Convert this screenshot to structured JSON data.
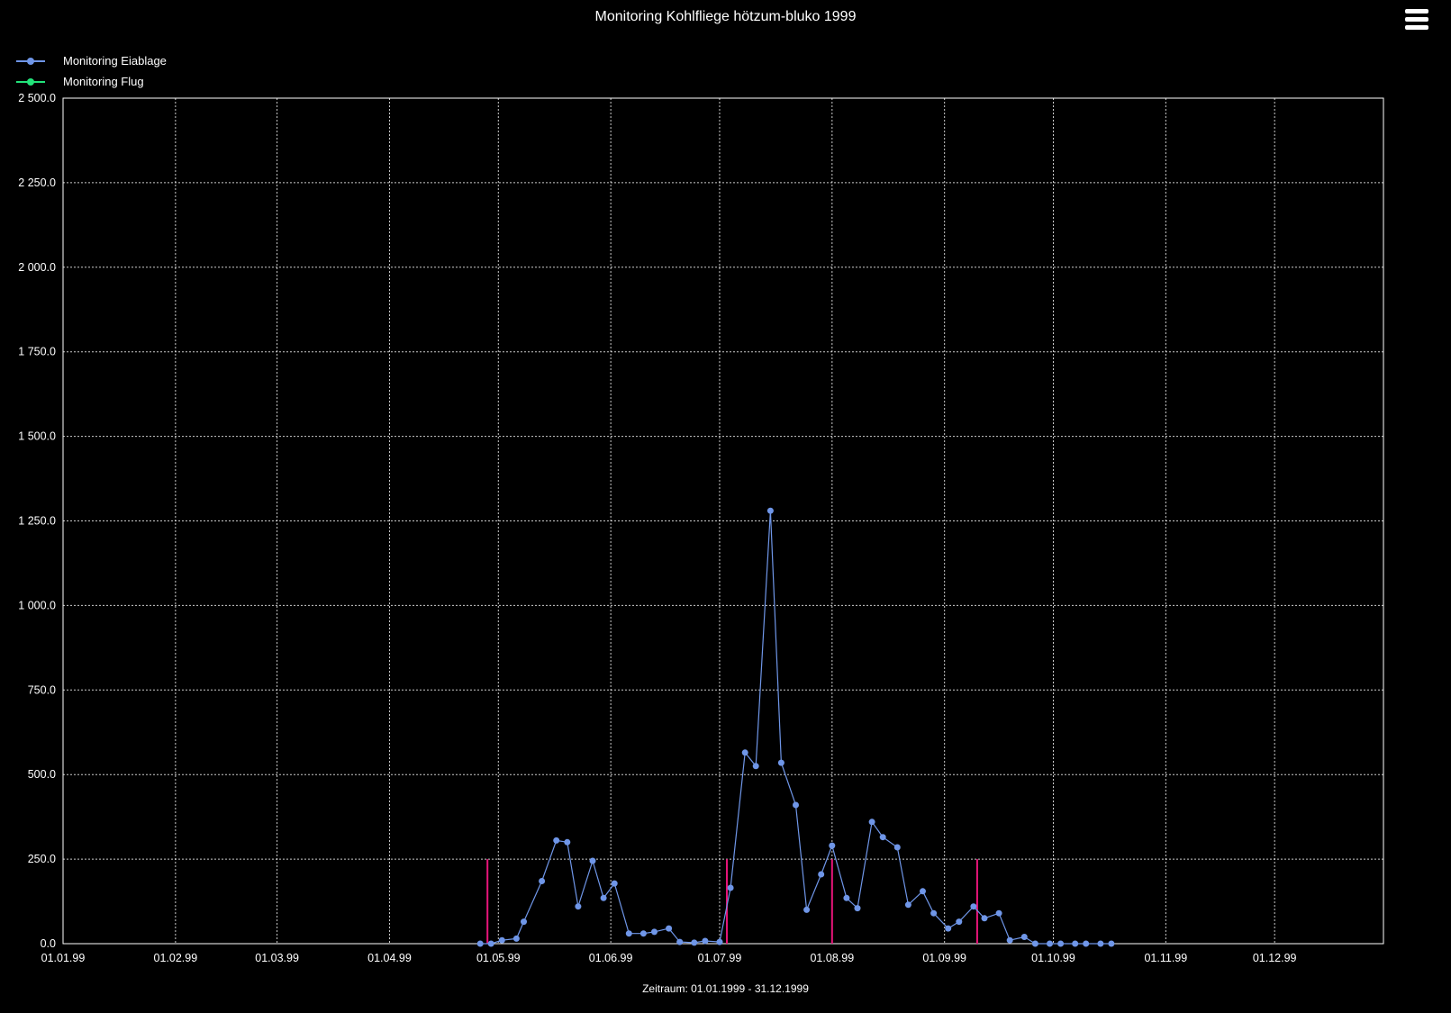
{
  "header": {
    "title": "Monitoring Kohlfliege hötzum-bluko 1999",
    "menu_icon": "hamburger-icon"
  },
  "chart_data": {
    "type": "line",
    "title": "Monitoring Kohlfliege hötzum-bluko 1999",
    "xlabel": "Zeitraum: 01.01.1999 - 31.12.1999",
    "ylabel": "",
    "xlim": [
      "1999-01-01",
      "1999-12-31"
    ],
    "ylim": [
      0,
      2500
    ],
    "grid": true,
    "legend_position": "top-left",
    "x_ticks": [
      "01.01.99",
      "01.02.99",
      "01.03.99",
      "01.04.99",
      "01.05.99",
      "01.06.99",
      "01.07.99",
      "01.08.99",
      "01.09.99",
      "01.10.99",
      "01.11.99",
      "01.12.99"
    ],
    "y_ticks": [
      "0.0",
      "250.0",
      "500.0",
      "750.0",
      "1 000.0",
      "1 250.0",
      "1 500.0",
      "1 750.0",
      "2 000.0",
      "2 250.0",
      "2 500.0"
    ],
    "y_tick_values": [
      0,
      250,
      500,
      750,
      1000,
      1250,
      1500,
      1750,
      2000,
      2250,
      2500
    ],
    "series": [
      {
        "name": "Monitoring Eiablage",
        "color": "#6f96e8",
        "points": [
          [
            "1999-04-26",
            0
          ],
          [
            "1999-04-29",
            0
          ],
          [
            "1999-05-02",
            10
          ],
          [
            "1999-05-06",
            15
          ],
          [
            "1999-05-08",
            65
          ],
          [
            "1999-05-13",
            185
          ],
          [
            "1999-05-17",
            305
          ],
          [
            "1999-05-20",
            300
          ],
          [
            "1999-05-23",
            110
          ],
          [
            "1999-05-27",
            245
          ],
          [
            "1999-05-30",
            135
          ],
          [
            "1999-06-02",
            178
          ],
          [
            "1999-06-06",
            30
          ],
          [
            "1999-06-10",
            30
          ],
          [
            "1999-06-13",
            35
          ],
          [
            "1999-06-17",
            45
          ],
          [
            "1999-06-20",
            5
          ],
          [
            "1999-06-24",
            3
          ],
          [
            "1999-06-27",
            8
          ],
          [
            "1999-07-01",
            5
          ],
          [
            "1999-07-04",
            165
          ],
          [
            "1999-07-08",
            565
          ],
          [
            "1999-07-11",
            525
          ],
          [
            "1999-07-15",
            1280
          ],
          [
            "1999-07-18",
            535
          ],
          [
            "1999-07-22",
            410
          ],
          [
            "1999-07-25",
            100
          ],
          [
            "1999-07-29",
            205
          ],
          [
            "1999-08-01",
            290
          ],
          [
            "1999-08-05",
            135
          ],
          [
            "1999-08-08",
            105
          ],
          [
            "1999-08-12",
            360
          ],
          [
            "1999-08-15",
            315
          ],
          [
            "1999-08-19",
            285
          ],
          [
            "1999-08-22",
            115
          ],
          [
            "1999-08-26",
            155
          ],
          [
            "1999-08-29",
            90
          ],
          [
            "1999-09-02",
            45
          ],
          [
            "1999-09-05",
            65
          ],
          [
            "1999-09-09",
            110
          ],
          [
            "1999-09-12",
            75
          ],
          [
            "1999-09-16",
            90
          ],
          [
            "1999-09-19",
            10
          ],
          [
            "1999-09-23",
            20
          ],
          [
            "1999-09-26",
            0
          ],
          [
            "1999-09-30",
            0
          ],
          [
            "1999-10-03",
            0
          ],
          [
            "1999-10-07",
            0
          ],
          [
            "1999-10-10",
            0
          ],
          [
            "1999-10-14",
            0
          ],
          [
            "1999-10-17",
            0
          ]
        ]
      },
      {
        "name": "Monitoring Flug",
        "color": "#22e37a",
        "points": []
      }
    ],
    "markers": {
      "color": "#e8157a",
      "dates": [
        "1999-04-28",
        "1999-07-03",
        "1999-08-01",
        "1999-09-10"
      ],
      "height_value": 250
    }
  }
}
